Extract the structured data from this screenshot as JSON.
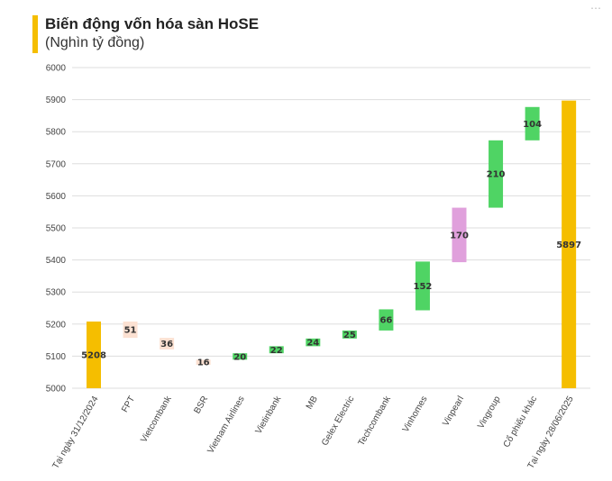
{
  "header": {
    "title": "Biến động vốn hóa sàn HoSE",
    "subtitle": "(Nghìn tỷ đồng)",
    "corner_icon": "ellipsis-icon"
  },
  "chart_data": {
    "type": "bar",
    "subtype": "waterfall",
    "title": "Biến động vốn hóa sàn HoSE",
    "ylabel": "(Nghìn tỷ đồng)",
    "ylim": [
      5000,
      6000
    ],
    "yticks": [
      5000,
      5100,
      5200,
      5300,
      5400,
      5500,
      5600,
      5700,
      5800,
      5900,
      6000
    ],
    "grid": true,
    "categories": [
      "Tại ngày 31/12/2024",
      "FPT",
      "Vietcombank",
      "BSR",
      "Vietnam Airlines",
      "Vietinbank",
      "MB",
      "Gelex Electric",
      "Techcombank",
      "Vinhomes",
      "Vinpearl",
      "Vingroup",
      "Cổ phiếu khác",
      "Tại ngày 28/06/2025"
    ],
    "bars": [
      {
        "kind": "total",
        "base": 5000,
        "top": 5208,
        "label": "5208"
      },
      {
        "kind": "decrease",
        "base": 5157,
        "top": 5208,
        "label": "51"
      },
      {
        "kind": "decrease",
        "base": 5121,
        "top": 5157,
        "label": "36"
      },
      {
        "kind": "decrease",
        "base": 5073,
        "top": 5089,
        "label": "16"
      },
      {
        "kind": "increase",
        "base": 5089,
        "top": 5109,
        "label": "20"
      },
      {
        "kind": "increase",
        "base": 5109,
        "top": 5131,
        "label": "22"
      },
      {
        "kind": "increase",
        "base": 5131,
        "top": 5155,
        "label": "24"
      },
      {
        "kind": "increase",
        "base": 5155,
        "top": 5180,
        "label": "25"
      },
      {
        "kind": "increase",
        "base": 5180,
        "top": 5246,
        "label": "66"
      },
      {
        "kind": "increase",
        "base": 5243,
        "top": 5395,
        "label": "152"
      },
      {
        "kind": "highlight",
        "base": 5393,
        "top": 5563,
        "label": "170"
      },
      {
        "kind": "increase",
        "base": 5563,
        "top": 5773,
        "label": "210"
      },
      {
        "kind": "increase",
        "base": 5773,
        "top": 5877,
        "label": "104"
      },
      {
        "kind": "total",
        "base": 5000,
        "top": 5897,
        "label": "5897"
      }
    ],
    "colors": {
      "total": "#F5BE00",
      "decrease": "#FCE1D2",
      "increase": "#4FD464",
      "highlight": "#E0A0DC",
      "grid": "#DDDDDD"
    }
  }
}
